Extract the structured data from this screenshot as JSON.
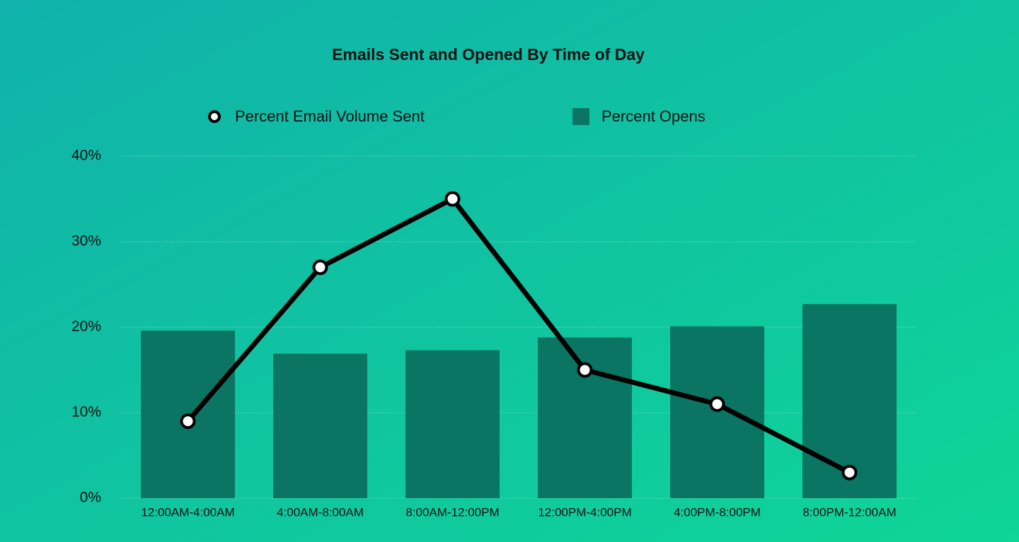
{
  "chart_data": {
    "type": "combo",
    "title": "Emails Sent and Opened By Time of Day",
    "categories": [
      "12:00AM-4:00AM",
      "4:00AM-8:00AM",
      "8:00AM-12:00PM",
      "12:00PM-4:00PM",
      "4:00PM-8:00PM",
      "8:00PM-12:00AM"
    ],
    "series": [
      {
        "name": "Percent Email Volume Sent",
        "type": "line",
        "color": "#000000",
        "values": [
          9,
          27,
          35,
          15,
          11,
          3
        ]
      },
      {
        "name": "Percent Opens",
        "type": "bar",
        "color": "#0a7563",
        "values": [
          19.6,
          16.9,
          17.3,
          18.8,
          20.1,
          22.7
        ]
      }
    ],
    "ylim": [
      0,
      40
    ],
    "yticks": [
      {
        "value": 0,
        "label": "0%"
      },
      {
        "value": 10,
        "label": "10%"
      },
      {
        "value": 20,
        "label": "20%"
      },
      {
        "value": 30,
        "label": "30%"
      },
      {
        "value": 40,
        "label": "40%"
      }
    ],
    "grid": true
  }
}
